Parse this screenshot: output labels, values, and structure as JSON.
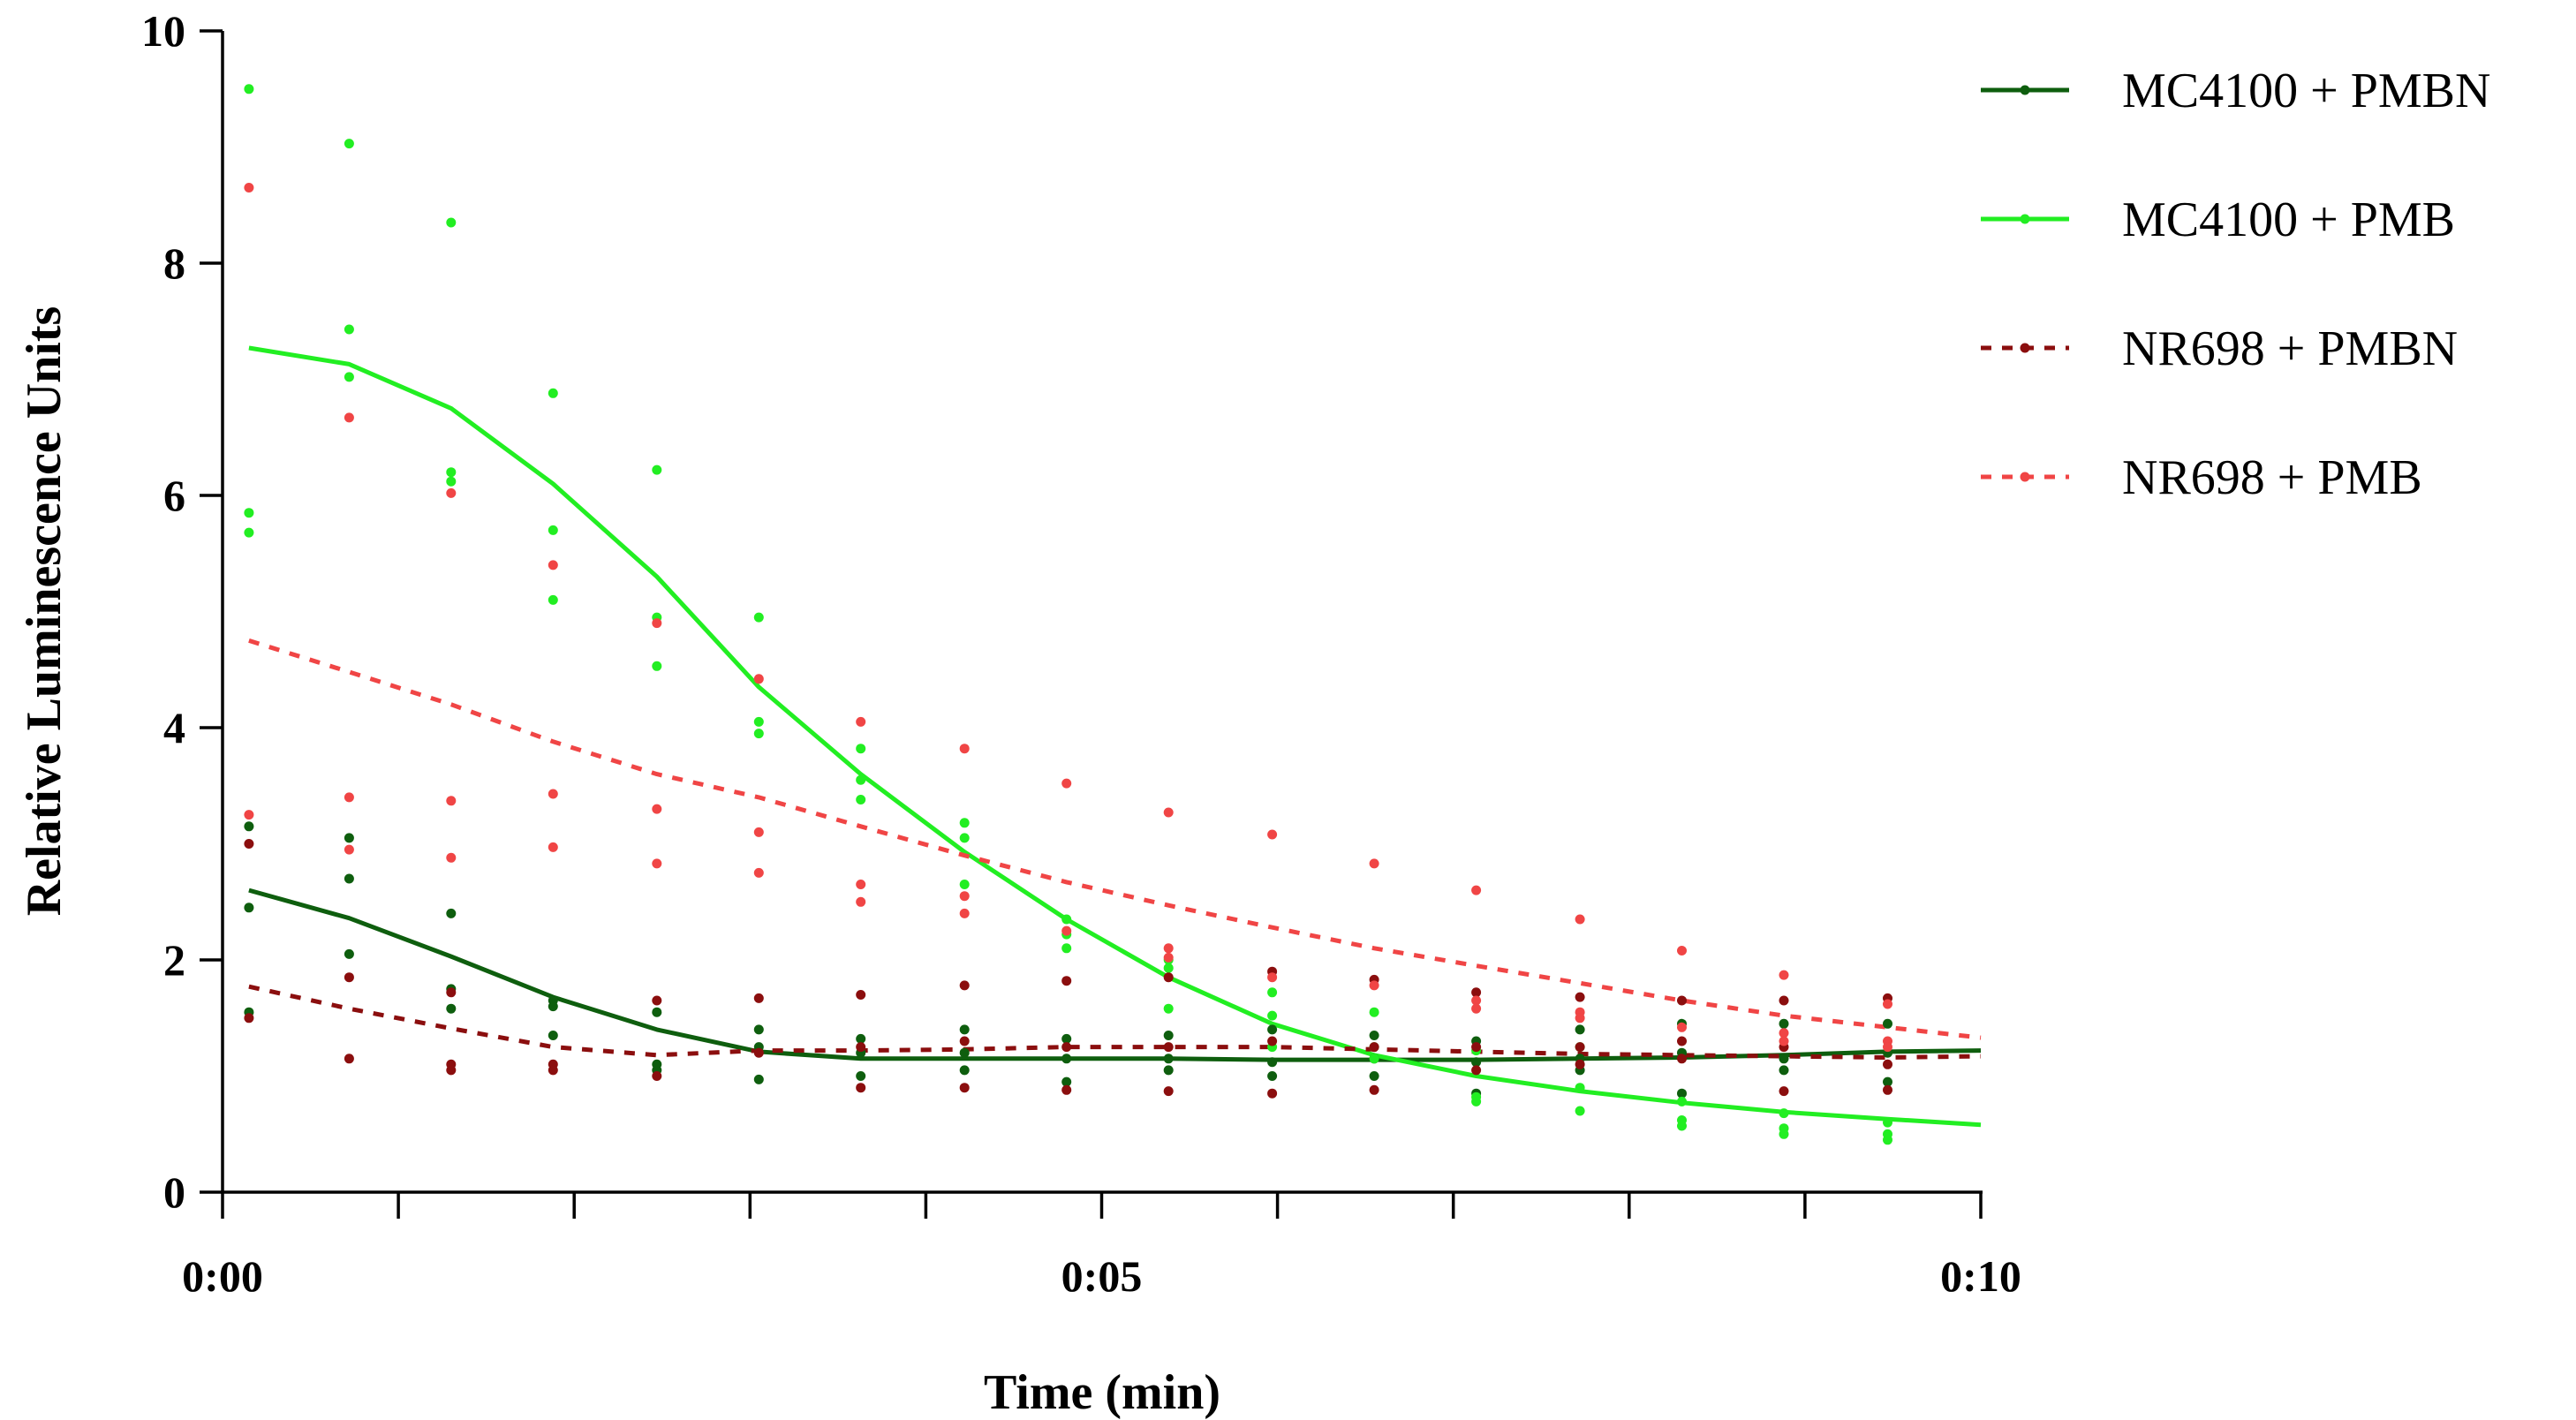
{
  "chart_data": {
    "type": "line",
    "title": "",
    "xlabel": "Time (min)",
    "ylabel": "Relative Luminescence Units",
    "xlim": [
      0,
      10
    ],
    "ylim": [
      0,
      10
    ],
    "x_ticks": [
      {
        "value": 0,
        "label": "0:00"
      },
      {
        "value": 5,
        "label": "0:05"
      },
      {
        "value": 10,
        "label": "0:10"
      }
    ],
    "x_minor_ticks": [
      1,
      2,
      3,
      4,
      6,
      7,
      8,
      9
    ],
    "y_ticks": [
      {
        "value": 0,
        "label": "0"
      },
      {
        "value": 2,
        "label": "2"
      },
      {
        "value": 4,
        "label": "4"
      },
      {
        "value": 6,
        "label": "6"
      },
      {
        "value": 8,
        "label": "8"
      },
      {
        "value": 10,
        "label": "10"
      }
    ],
    "legend_position": "top-right",
    "x": [
      0.15,
      0.72,
      1.3,
      1.88,
      2.47,
      3.05,
      3.63,
      4.22,
      4.8,
      5.38,
      5.97,
      6.55,
      7.13,
      7.72,
      8.3,
      8.88,
      9.47,
      10.0
    ],
    "series": [
      {
        "name": "MC4100 + PMBN",
        "color": "#0e5e0e",
        "dashed": false,
        "values": [
          2.6,
          2.36,
          2.03,
          1.68,
          1.4,
          1.21,
          1.15,
          1.15,
          1.15,
          1.15,
          1.14,
          1.14,
          1.14,
          1.15,
          1.16,
          1.18,
          1.21,
          1.22
        ],
        "points": [
          [
            0.15,
            3.15
          ],
          [
            0.15,
            2.45
          ],
          [
            0.15,
            1.55
          ],
          [
            0.72,
            3.05
          ],
          [
            0.72,
            2.7
          ],
          [
            0.72,
            2.05
          ],
          [
            1.3,
            2.4
          ],
          [
            1.3,
            1.75
          ],
          [
            1.3,
            1.58
          ],
          [
            1.88,
            1.65
          ],
          [
            1.88,
            1.6
          ],
          [
            1.88,
            1.35
          ],
          [
            2.47,
            1.55
          ],
          [
            2.47,
            1.1
          ],
          [
            2.47,
            1.05
          ],
          [
            3.05,
            1.4
          ],
          [
            3.05,
            1.25
          ],
          [
            3.05,
            0.97
          ],
          [
            3.63,
            1.32
          ],
          [
            3.63,
            1.2
          ],
          [
            3.63,
            1.0
          ],
          [
            4.22,
            1.4
          ],
          [
            4.22,
            1.2
          ],
          [
            4.22,
            1.05
          ],
          [
            4.8,
            1.32
          ],
          [
            4.8,
            1.15
          ],
          [
            4.8,
            0.95
          ],
          [
            5.38,
            1.35
          ],
          [
            5.38,
            1.15
          ],
          [
            5.38,
            1.05
          ],
          [
            5.97,
            1.4
          ],
          [
            5.97,
            1.12
          ],
          [
            5.97,
            1.0
          ],
          [
            6.55,
            1.35
          ],
          [
            6.55,
            1.15
          ],
          [
            6.55,
            1.0
          ],
          [
            7.13,
            1.3
          ],
          [
            7.13,
            1.12
          ],
          [
            7.13,
            0.85
          ],
          [
            7.72,
            1.4
          ],
          [
            7.72,
            1.15
          ],
          [
            7.72,
            1.05
          ],
          [
            8.3,
            1.45
          ],
          [
            8.3,
            1.2
          ],
          [
            8.3,
            0.85
          ],
          [
            8.88,
            1.45
          ],
          [
            8.88,
            1.15
          ],
          [
            8.88,
            1.05
          ],
          [
            9.47,
            1.45
          ],
          [
            9.47,
            1.2
          ],
          [
            9.47,
            0.95
          ]
        ]
      },
      {
        "name": "MC4100 + PMB",
        "color": "#22ee22",
        "dashed": false,
        "values": [
          7.27,
          7.13,
          6.75,
          6.1,
          5.3,
          4.35,
          3.6,
          2.93,
          2.35,
          1.85,
          1.45,
          1.18,
          1.0,
          0.87,
          0.77,
          0.69,
          0.63,
          0.58
        ],
        "points": [
          [
            0.15,
            9.5
          ],
          [
            0.15,
            5.85
          ],
          [
            0.15,
            5.68
          ],
          [
            0.72,
            9.03
          ],
          [
            0.72,
            7.43
          ],
          [
            0.72,
            7.02
          ],
          [
            1.3,
            8.35
          ],
          [
            1.3,
            6.2
          ],
          [
            1.3,
            6.12
          ],
          [
            1.88,
            6.88
          ],
          [
            1.88,
            5.7
          ],
          [
            1.88,
            5.1
          ],
          [
            2.47,
            6.22
          ],
          [
            2.47,
            4.95
          ],
          [
            2.47,
            4.53
          ],
          [
            3.05,
            4.95
          ],
          [
            3.05,
            4.05
          ],
          [
            3.05,
            3.95
          ],
          [
            3.63,
            3.82
          ],
          [
            3.63,
            3.55
          ],
          [
            3.63,
            3.38
          ],
          [
            4.22,
            3.18
          ],
          [
            4.22,
            3.05
          ],
          [
            4.22,
            2.65
          ],
          [
            4.8,
            2.35
          ],
          [
            4.8,
            2.22
          ],
          [
            4.8,
            2.1
          ],
          [
            5.38,
            2.0
          ],
          [
            5.38,
            1.93
          ],
          [
            5.38,
            1.58
          ],
          [
            5.97,
            1.72
          ],
          [
            5.97,
            1.52
          ],
          [
            5.97,
            1.25
          ],
          [
            6.55,
            1.55
          ],
          [
            6.55,
            1.25
          ],
          [
            6.55,
            1.15
          ],
          [
            7.13,
            1.22
          ],
          [
            7.13,
            0.82
          ],
          [
            7.13,
            0.78
          ],
          [
            7.72,
            1.25
          ],
          [
            7.72,
            0.9
          ],
          [
            7.72,
            0.7
          ],
          [
            8.3,
            0.78
          ],
          [
            8.3,
            0.62
          ],
          [
            8.3,
            0.57
          ],
          [
            8.88,
            0.68
          ],
          [
            8.88,
            0.55
          ],
          [
            8.88,
            0.5
          ],
          [
            9.47,
            0.6
          ],
          [
            9.47,
            0.5
          ],
          [
            9.47,
            0.45
          ]
        ]
      },
      {
        "name": "NR698 + PMBN",
        "color": "#8b0e0e",
        "dashed": true,
        "values": [
          1.77,
          1.58,
          1.41,
          1.25,
          1.18,
          1.22,
          1.22,
          1.23,
          1.25,
          1.25,
          1.25,
          1.23,
          1.21,
          1.19,
          1.18,
          1.17,
          1.16,
          1.17
        ],
        "points": [
          [
            0.15,
            3.0
          ],
          [
            0.15,
            1.5
          ],
          [
            0.72,
            1.85
          ],
          [
            0.72,
            1.15
          ],
          [
            1.3,
            1.72
          ],
          [
            1.3,
            1.1
          ],
          [
            1.3,
            1.05
          ],
          [
            1.88,
            1.1
          ],
          [
            1.88,
            1.05
          ],
          [
            2.47,
            1.65
          ],
          [
            2.47,
            1.0
          ],
          [
            3.05,
            1.67
          ],
          [
            3.05,
            1.2
          ],
          [
            3.63,
            1.7
          ],
          [
            3.63,
            1.25
          ],
          [
            3.63,
            0.9
          ],
          [
            4.22,
            1.78
          ],
          [
            4.22,
            1.3
          ],
          [
            4.22,
            0.9
          ],
          [
            4.8,
            1.82
          ],
          [
            4.8,
            1.25
          ],
          [
            4.8,
            0.88
          ],
          [
            5.38,
            1.85
          ],
          [
            5.38,
            1.25
          ],
          [
            5.38,
            0.87
          ],
          [
            5.97,
            1.9
          ],
          [
            5.97,
            1.3
          ],
          [
            5.97,
            0.85
          ],
          [
            6.55,
            1.83
          ],
          [
            6.55,
            1.25
          ],
          [
            6.55,
            0.88
          ],
          [
            7.13,
            1.72
          ],
          [
            7.13,
            1.25
          ],
          [
            7.13,
            1.05
          ],
          [
            7.72,
            1.68
          ],
          [
            7.72,
            1.25
          ],
          [
            7.72,
            1.1
          ],
          [
            8.3,
            1.65
          ],
          [
            8.3,
            1.3
          ],
          [
            8.3,
            1.15
          ],
          [
            8.88,
            1.65
          ],
          [
            8.88,
            1.25
          ],
          [
            8.88,
            0.87
          ],
          [
            9.47,
            1.67
          ],
          [
            9.47,
            1.1
          ],
          [
            9.47,
            0.88
          ]
        ]
      },
      {
        "name": "NR698 + PMB",
        "color": "#f04545",
        "dashed": true,
        "values": [
          4.75,
          4.48,
          4.2,
          3.88,
          3.6,
          3.4,
          3.15,
          2.9,
          2.67,
          2.47,
          2.28,
          2.1,
          1.95,
          1.8,
          1.65,
          1.52,
          1.42,
          1.33
        ],
        "points": [
          [
            0.15,
            8.65
          ],
          [
            0.15,
            3.25
          ],
          [
            0.72,
            6.67
          ],
          [
            0.72,
            3.4
          ],
          [
            0.72,
            2.95
          ],
          [
            1.3,
            6.02
          ],
          [
            1.3,
            3.37
          ],
          [
            1.3,
            2.88
          ],
          [
            1.88,
            5.4
          ],
          [
            1.88,
            3.43
          ],
          [
            1.88,
            2.97
          ],
          [
            2.47,
            4.9
          ],
          [
            2.47,
            3.3
          ],
          [
            2.47,
            2.83
          ],
          [
            3.05,
            4.42
          ],
          [
            3.05,
            3.1
          ],
          [
            3.05,
            2.75
          ],
          [
            3.63,
            4.05
          ],
          [
            3.63,
            2.65
          ],
          [
            3.63,
            2.5
          ],
          [
            4.22,
            3.82
          ],
          [
            4.22,
            2.55
          ],
          [
            4.22,
            2.4
          ],
          [
            4.8,
            3.52
          ],
          [
            4.8,
            2.25
          ],
          [
            5.38,
            3.27
          ],
          [
            5.38,
            2.1
          ],
          [
            5.38,
            2.02
          ],
          [
            5.97,
            3.08
          ],
          [
            5.97,
            1.85
          ],
          [
            6.55,
            2.83
          ],
          [
            6.55,
            1.78
          ],
          [
            7.13,
            2.6
          ],
          [
            7.13,
            1.65
          ],
          [
            7.13,
            1.58
          ],
          [
            7.72,
            2.35
          ],
          [
            7.72,
            1.55
          ],
          [
            7.72,
            1.5
          ],
          [
            8.3,
            2.08
          ],
          [
            8.3,
            1.42
          ],
          [
            8.88,
            1.87
          ],
          [
            8.88,
            1.37
          ],
          [
            8.88,
            1.3
          ],
          [
            9.47,
            1.62
          ],
          [
            9.47,
            1.3
          ],
          [
            9.47,
            1.25
          ]
        ]
      }
    ]
  }
}
